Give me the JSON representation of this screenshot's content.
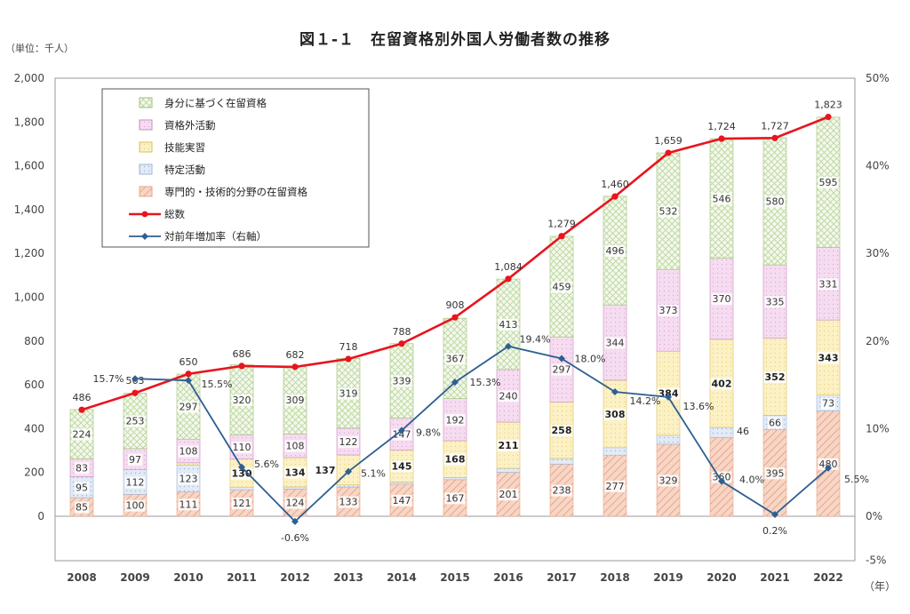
{
  "title": "図１-１　在留資格別外国人労働者数の推移",
  "unit_label": "（単位：千人）",
  "chart_data": {
    "type": "bar",
    "stacked": true,
    "title": "図１-１　在留資格別外国人労働者数の推移",
    "categories": [
      "2008",
      "2009",
      "2010",
      "2011",
      "2012",
      "2013",
      "2014",
      "2015",
      "2016",
      "2017",
      "2018",
      "2019",
      "2020",
      "2021",
      "2022"
    ],
    "x_unit": "（年）",
    "ylim": [
      0,
      2000
    ],
    "y_ticks": [
      "0",
      "200",
      "400",
      "600",
      "800",
      "1,000",
      "1,200",
      "1,400",
      "1,600",
      "1,800",
      "2,000"
    ],
    "y2lim": [
      -5,
      50
    ],
    "y2_ticks": [
      "-5%",
      "0%",
      "10%",
      "20%",
      "30%",
      "40%",
      "50%"
    ],
    "grid": false,
    "legend_position": "top-left",
    "series": [
      {
        "name": "専門的・技術的分野の在留資格",
        "color": "#f4c7b4",
        "values": [
          85,
          100,
          111,
          121,
          124,
          133,
          147,
          167,
          201,
          238,
          277,
          329,
          360,
          395,
          480
        ],
        "labels": [
          "85",
          "100",
          "111",
          "121",
          "124",
          "133",
          "147",
          "167",
          "201",
          "238",
          "277",
          "329",
          "360",
          "395",
          "480"
        ]
      },
      {
        "name": "特定活動",
        "color": "#dde7f3",
        "values": [
          95,
          112,
          123,
          10,
          10,
          10,
          10,
          10,
          18,
          26,
          36,
          41,
          46,
          66,
          73
        ],
        "labels": [
          "95",
          "112",
          "123",
          "",
          "",
          "",
          "",
          "",
          "",
          "",
          "",
          "",
          "46",
          "66",
          "73"
        ]
      },
      {
        "name": "技能実習",
        "color": "#fbeeb8",
        "values": [
          0,
          0,
          10,
          130,
          134,
          137,
          145,
          168,
          211,
          258,
          308,
          384,
          402,
          352,
          343
        ],
        "labels": [
          "",
          "",
          "",
          "130",
          "134",
          "137",
          "145",
          "168",
          "211",
          "258",
          "308",
          "384",
          "402",
          "352",
          "343"
        ]
      },
      {
        "name": "資格外活動",
        "color": "#f3d4ee",
        "values": [
          83,
          97,
          108,
          110,
          108,
          122,
          147,
          192,
          240,
          297,
          344,
          373,
          370,
          335,
          331
        ],
        "labels": [
          "83",
          "97",
          "108",
          "110",
          "108",
          "122",
          "147",
          "192",
          "240",
          "297",
          "344",
          "373",
          "370",
          "335",
          "331"
        ]
      },
      {
        "name": "身分に基づく在留資格",
        "color": "#eef6e2",
        "values": [
          224,
          253,
          297,
          320,
          309,
          319,
          339,
          367,
          413,
          459,
          496,
          532,
          546,
          580,
          595
        ],
        "labels": [
          "224",
          "253",
          "297",
          "320",
          "309",
          "319",
          "339",
          "367",
          "413",
          "459",
          "496",
          "532",
          "546",
          "580",
          "595"
        ]
      }
    ],
    "total": {
      "name": "総数",
      "color": "#e8141e",
      "values": [
        486,
        563,
        650,
        686,
        682,
        718,
        788,
        908,
        1084,
        1279,
        1460,
        1659,
        1724,
        1727,
        1823
      ],
      "labels": [
        "486",
        "563",
        "650",
        "686",
        "682",
        "718",
        "788",
        "908",
        "1,084",
        "1,279",
        "1,460",
        "1,659",
        "1,724",
        "1,727",
        "1,823"
      ]
    },
    "growth_rate": {
      "name": "対前年増加率（右軸）",
      "color": "#2e5f91",
      "x": [
        "2009",
        "2010",
        "2011",
        "2012",
        "2013",
        "2014",
        "2015",
        "2016",
        "2017",
        "2018",
        "2019",
        "2020",
        "2021",
        "2022"
      ],
      "values": [
        15.7,
        15.5,
        5.6,
        -0.6,
        5.1,
        9.8,
        15.3,
        19.4,
        18.0,
        14.2,
        13.6,
        4.0,
        0.2,
        5.5
      ],
      "labels": [
        "15.7%",
        "15.5%",
        "5.6%",
        "-0.6%",
        "5.1%",
        "9.8%",
        "15.3%",
        "19.4%",
        "18.0%",
        "14.2%",
        "13.6%",
        "4.0%",
        "0.2%",
        "5.5%"
      ]
    },
    "legend": [
      {
        "name": "身分に基づく在留資格",
        "kind": "box",
        "color": "#eef6e2"
      },
      {
        "name": "資格外活動",
        "kind": "box",
        "color": "#f3d4ee"
      },
      {
        "name": "技能実習",
        "kind": "box",
        "color": "#fbeeb8"
      },
      {
        "name": "特定活動",
        "kind": "box",
        "color": "#dde7f3"
      },
      {
        "name": "専門的・技術的分野の在留資格",
        "kind": "box",
        "color": "#f4c7b4"
      },
      {
        "name": "総数",
        "kind": "line",
        "color": "#e8141e"
      },
      {
        "name": "対前年増加率（右軸）",
        "kind": "line",
        "color": "#2e5f91"
      }
    ]
  }
}
